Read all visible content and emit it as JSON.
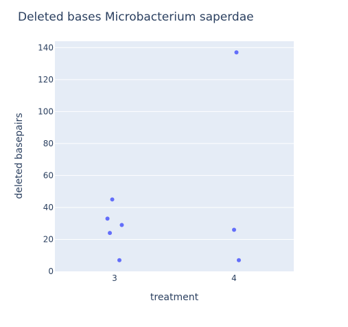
{
  "chart_data": {
    "type": "scatter",
    "title": "Deleted bases Microbacterium saperdae",
    "xlabel": "treatment",
    "ylabel": "deleted basepairs",
    "x_categories": [
      "3",
      "4"
    ],
    "ylim": [
      0,
      144
    ],
    "yticks": [
      0,
      20,
      40,
      60,
      80,
      100,
      120,
      140
    ],
    "grid": true,
    "legend": "none",
    "colors": {
      "plot_bg": "#e5ecf6",
      "grid": "#ffffff",
      "marker": "#636efa",
      "text": "#2a3f5f"
    },
    "points": [
      {
        "x": "3",
        "jitter": -0.06,
        "y": 33
      },
      {
        "x": "3",
        "jitter": -0.04,
        "y": 24
      },
      {
        "x": "3",
        "jitter": -0.02,
        "y": 45
      },
      {
        "x": "3",
        "jitter": 0.04,
        "y": 7
      },
      {
        "x": "3",
        "jitter": 0.06,
        "y": 29
      },
      {
        "x": "4",
        "jitter": 0.0,
        "y": 26
      },
      {
        "x": "4",
        "jitter": 0.02,
        "y": 137
      },
      {
        "x": "4",
        "jitter": 0.04,
        "y": 7
      }
    ]
  }
}
